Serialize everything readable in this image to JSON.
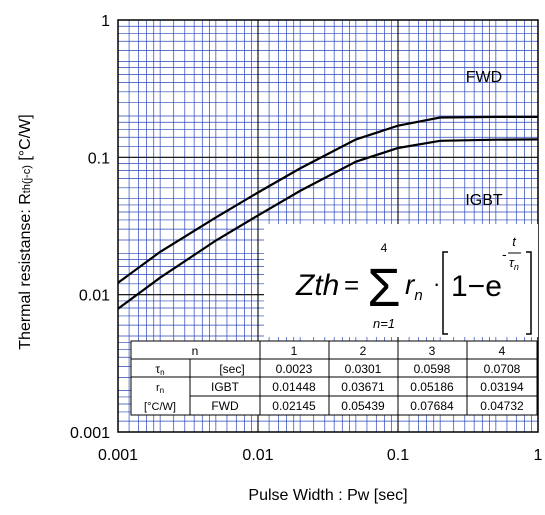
{
  "chart_data": {
    "type": "line",
    "xlabel": "Pulse Width : Pw [sec]",
    "ylabel_main": "Thermal resistanse: R",
    "ylabel_sub": "th(j-c)",
    "ylabel_unit": " [°C/W]",
    "x_scale": "log",
    "y_scale": "log",
    "xlim": [
      0.001,
      1
    ],
    "ylim": [
      0.001,
      1
    ],
    "x_ticks": [
      {
        "value": 0.001,
        "label": "0.001"
      },
      {
        "value": 0.01,
        "label": "0.01"
      },
      {
        "value": 0.1,
        "label": "0.1"
      },
      {
        "value": 1,
        "label": "1"
      }
    ],
    "y_ticks": [
      {
        "value": 1,
        "label": "1"
      },
      {
        "value": 0.1,
        "label": "0.1"
      },
      {
        "value": 0.01,
        "label": "0.01"
      },
      {
        "value": 0.001,
        "label": "0.001"
      }
    ],
    "grid": true,
    "grid_color": "#2a45b8",
    "line_color": "#000000",
    "series": [
      {
        "name": "FWD",
        "x": [
          0.001,
          0.002,
          0.005,
          0.01,
          0.02,
          0.05,
          0.1,
          0.2,
          0.5,
          1
        ],
        "y": [
          0.0122,
          0.0205,
          0.0365,
          0.0555,
          0.083,
          0.135,
          0.17,
          0.195,
          0.197,
          0.197
        ]
      },
      {
        "name": "IGBT",
        "x": [
          0.001,
          0.002,
          0.005,
          0.01,
          0.02,
          0.05,
          0.1,
          0.2,
          0.5,
          1
        ],
        "y": [
          0.0079,
          0.0133,
          0.0248,
          0.0378,
          0.057,
          0.093,
          0.117,
          0.132,
          0.1345,
          0.135
        ]
      }
    ],
    "series_labels": [
      {
        "text": "FWD",
        "anchor": "upper"
      },
      {
        "text": "IGBT",
        "anchor": "lower"
      }
    ],
    "formula": {
      "lhs": "Zth",
      "eq": "=",
      "sigma": "Σ",
      "upper": "4",
      "lower": "n=1",
      "r": "r",
      "r_sub": "n",
      "dot": "·",
      "one_minus": "1−e",
      "exp_num": "t",
      "exp_den": "τ",
      "exp_den_sub": "n",
      "exp_sign": "-"
    },
    "table": {
      "header": {
        "n": "n",
        "cols": [
          "1",
          "2",
          "3",
          "4"
        ]
      },
      "tau_row": {
        "sym": "τ",
        "sym_sub": "n",
        "unit": "[sec]",
        "values": [
          "0.0023",
          "0.0301",
          "0.0598",
          "0.0708"
        ]
      },
      "r_sym": "r",
      "r_sym_sub": "n",
      "r_unit": "[°C/W]",
      "r_rows": [
        {
          "label": "IGBT",
          "values": [
            "0.01448",
            "0.03671",
            "0.05186",
            "0.03194"
          ]
        },
        {
          "label": "FWD",
          "values": [
            "0.02145",
            "0.05439",
            "0.07684",
            "0.04732"
          ]
        }
      ]
    }
  }
}
